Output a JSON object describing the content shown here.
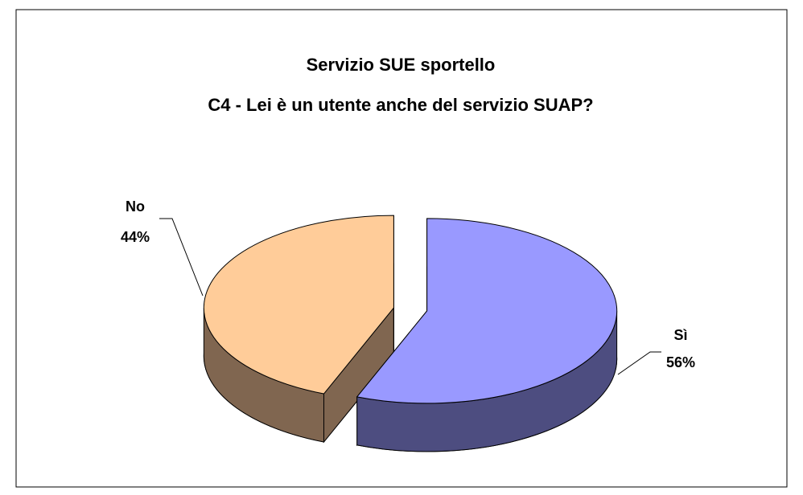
{
  "chart_data": {
    "type": "pie",
    "title": [
      "Servizio SUE sportello",
      "C4 - Lei è un utente anche del servizio SUAP?"
    ],
    "categories": [
      "Sì",
      "No"
    ],
    "values": [
      56,
      44
    ],
    "value_labels": [
      "56%",
      "44%"
    ],
    "colors": [
      "#9999ff",
      "#ffcc99"
    ],
    "side_colors": [
      "#4d4d80",
      "#806650"
    ]
  }
}
